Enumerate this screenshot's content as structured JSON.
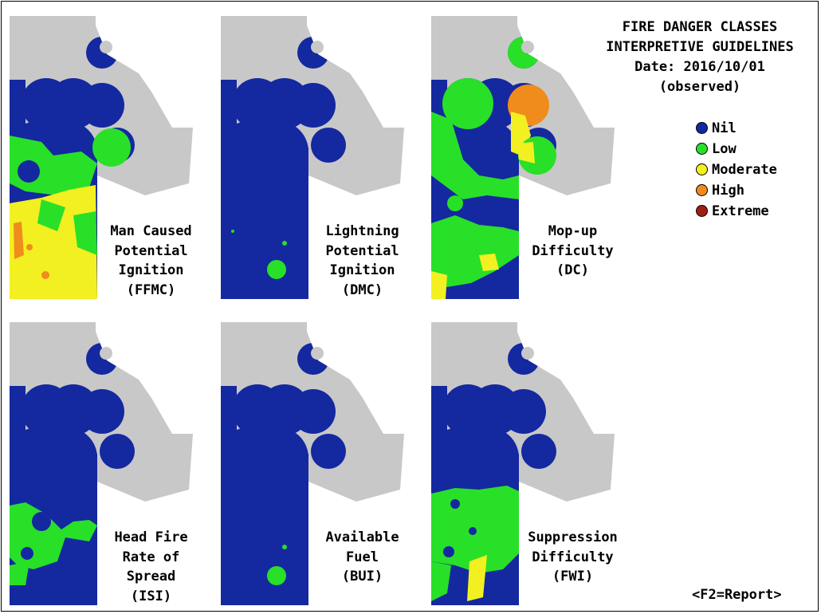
{
  "header": {
    "title_line1": "FIRE DANGER CLASSES",
    "title_line2": "INTERPRETIVE GUIDELINES",
    "date": "Date: 2016/10/01",
    "observed": "(observed)"
  },
  "legend": {
    "items": [
      {
        "label": "Nil",
        "color": "#1428a0"
      },
      {
        "label": "Low",
        "color": "#28e028"
      },
      {
        "label": "Moderate",
        "color": "#f2f020"
      },
      {
        "label": "High",
        "color": "#f08c1c"
      },
      {
        "label": "Extreme",
        "color": "#a01e14"
      }
    ]
  },
  "colors": {
    "land": "#c8c8c8",
    "nil": "#1428a0",
    "low": "#28e028",
    "moderate": "#f2f020",
    "high": "#f08c1c",
    "extreme": "#a01e14"
  },
  "maps": [
    {
      "id": "ffmc",
      "lines": [
        "Man Caused",
        "Potential",
        "Ignition",
        "(FFMC)"
      ]
    },
    {
      "id": "dmc",
      "lines": [
        "Lightning",
        "Potential",
        "Ignition",
        "(DMC)"
      ]
    },
    {
      "id": "dc",
      "lines": [
        "Mop-up",
        "Difficulty",
        "(DC)",
        ""
      ]
    },
    {
      "id": "isi",
      "lines": [
        "Head Fire",
        "Rate of",
        "Spread",
        "(ISI)"
      ]
    },
    {
      "id": "bui",
      "lines": [
        "Available",
        "Fuel",
        "(BUI)",
        ""
      ]
    },
    {
      "id": "fwi",
      "lines": [
        "Suppression",
        "Difficulty",
        "(FWI)",
        ""
      ]
    }
  ],
  "footer": {
    "report_key": "<F2=Report>"
  }
}
